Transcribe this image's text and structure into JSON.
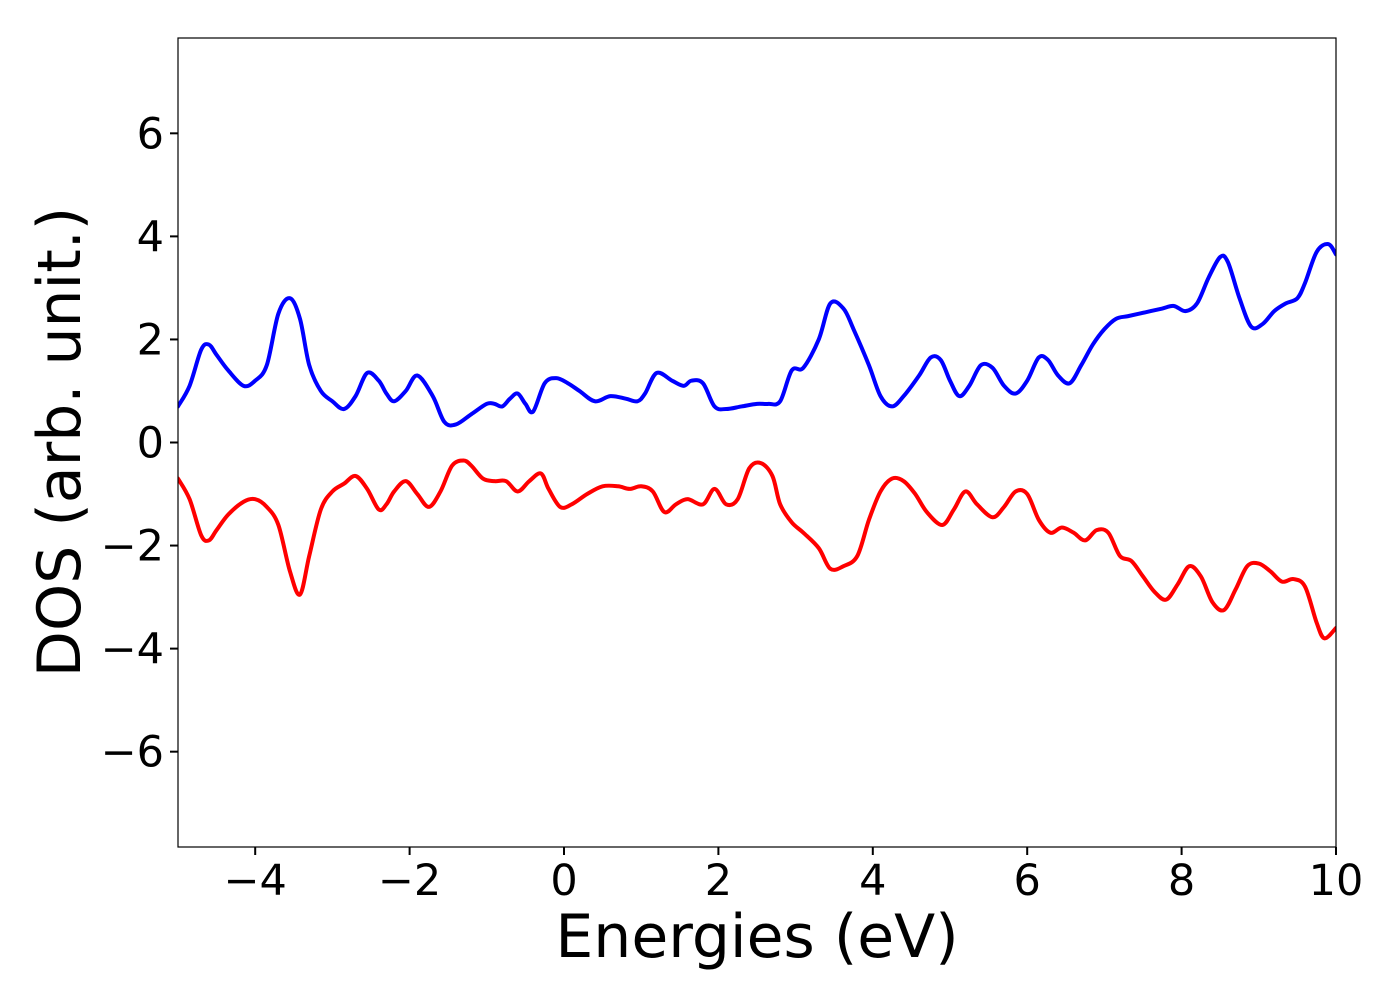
{
  "chart_data": {
    "type": "line",
    "title": "",
    "xlabel": "Energies (eV)",
    "ylabel": "DOS (arb. unit.)",
    "xlim": [
      -5,
      10
    ],
    "ylim": [
      -7.85,
      7.85
    ],
    "xticks": [
      -4,
      -2,
      0,
      2,
      4,
      6,
      8,
      10
    ],
    "yticks": [
      -6,
      -4,
      -2,
      0,
      2,
      4,
      6
    ],
    "xtick_labels": [
      "−4",
      "−2",
      "0",
      "2",
      "4",
      "6",
      "8",
      "10"
    ],
    "ytick_labels": [
      "−6",
      "−4",
      "−2",
      "0",
      "2",
      "4",
      "6"
    ],
    "grid": false,
    "legend": false,
    "series": [
      {
        "color": "#0000ff",
        "x": [
          -5.0,
          -4.85,
          -4.7,
          -4.6,
          -4.5,
          -4.35,
          -4.15,
          -4.0,
          -3.85,
          -3.7,
          -3.55,
          -3.42,
          -3.3,
          -3.15,
          -3.0,
          -2.85,
          -2.7,
          -2.55,
          -2.4,
          -2.3,
          -2.2,
          -2.05,
          -1.9,
          -1.7,
          -1.55,
          -1.4,
          -1.2,
          -1.0,
          -0.9,
          -0.8,
          -0.7,
          -0.6,
          -0.5,
          -0.4,
          -0.25,
          -0.1,
          0.05,
          0.2,
          0.4,
          0.6,
          0.8,
          0.95,
          1.05,
          1.2,
          1.4,
          1.55,
          1.65,
          1.8,
          1.95,
          2.1,
          2.3,
          2.5,
          2.65,
          2.8,
          2.95,
          3.1,
          3.3,
          3.45,
          3.62,
          3.75,
          3.95,
          4.1,
          4.25,
          4.4,
          4.6,
          4.75,
          4.88,
          5.0,
          5.12,
          5.25,
          5.4,
          5.55,
          5.7,
          5.85,
          6.0,
          6.15,
          6.27,
          6.4,
          6.55,
          6.7,
          6.85,
          7.0,
          7.15,
          7.3,
          7.45,
          7.6,
          7.75,
          7.9,
          8.05,
          8.2,
          8.35,
          8.5,
          8.6,
          8.75,
          8.9,
          9.05,
          9.2,
          9.35,
          9.5,
          9.6,
          9.75,
          9.9,
          10.0
        ],
        "y": [
          0.7,
          1.1,
          1.8,
          1.9,
          1.7,
          1.4,
          1.1,
          1.2,
          1.5,
          2.5,
          2.8,
          2.4,
          1.5,
          1.0,
          0.8,
          0.65,
          0.9,
          1.35,
          1.2,
          0.95,
          0.8,
          1.0,
          1.3,
          0.9,
          0.4,
          0.35,
          0.55,
          0.75,
          0.75,
          0.7,
          0.85,
          0.95,
          0.75,
          0.6,
          1.15,
          1.25,
          1.15,
          1.0,
          0.8,
          0.9,
          0.85,
          0.8,
          0.95,
          1.35,
          1.2,
          1.1,
          1.2,
          1.15,
          0.7,
          0.65,
          0.7,
          0.75,
          0.75,
          0.8,
          1.4,
          1.45,
          2.0,
          2.7,
          2.6,
          2.2,
          1.5,
          0.9,
          0.7,
          0.9,
          1.3,
          1.65,
          1.6,
          1.2,
          0.9,
          1.1,
          1.5,
          1.45,
          1.1,
          0.95,
          1.2,
          1.65,
          1.6,
          1.3,
          1.15,
          1.5,
          1.9,
          2.2,
          2.4,
          2.45,
          2.5,
          2.55,
          2.6,
          2.65,
          2.55,
          2.7,
          3.2,
          3.6,
          3.5,
          2.8,
          2.25,
          2.3,
          2.55,
          2.7,
          2.8,
          3.1,
          3.7,
          3.85,
          3.65
        ]
      },
      {
        "color": "#ff0000",
        "x": [
          -5.0,
          -4.85,
          -4.7,
          -4.6,
          -4.5,
          -4.35,
          -4.15,
          -4.0,
          -3.85,
          -3.7,
          -3.55,
          -3.42,
          -3.3,
          -3.15,
          -3.0,
          -2.85,
          -2.7,
          -2.55,
          -2.4,
          -2.3,
          -2.2,
          -2.05,
          -1.9,
          -1.75,
          -1.6,
          -1.45,
          -1.3,
          -1.2,
          -1.05,
          -0.9,
          -0.75,
          -0.6,
          -0.45,
          -0.3,
          -0.2,
          -0.05,
          0.1,
          0.3,
          0.5,
          0.7,
          0.85,
          1.0,
          1.15,
          1.3,
          1.45,
          1.6,
          1.8,
          1.95,
          2.1,
          2.25,
          2.4,
          2.55,
          2.7,
          2.8,
          2.95,
          3.1,
          3.3,
          3.45,
          3.62,
          3.8,
          3.95,
          4.1,
          4.25,
          4.4,
          4.55,
          4.7,
          4.9,
          5.05,
          5.2,
          5.35,
          5.55,
          5.7,
          5.85,
          6.0,
          6.15,
          6.3,
          6.45,
          6.6,
          6.75,
          6.9,
          7.05,
          7.2,
          7.35,
          7.5,
          7.65,
          7.8,
          7.95,
          8.1,
          8.25,
          8.4,
          8.55,
          8.7,
          8.85,
          9.0,
          9.15,
          9.3,
          9.45,
          9.6,
          9.75,
          9.85,
          10.0
        ],
        "y": [
          -0.7,
          -1.1,
          -1.8,
          -1.9,
          -1.7,
          -1.4,
          -1.15,
          -1.1,
          -1.25,
          -1.6,
          -2.5,
          -2.95,
          -2.2,
          -1.3,
          -0.95,
          -0.8,
          -0.65,
          -0.9,
          -1.3,
          -1.2,
          -0.95,
          -0.75,
          -1.0,
          -1.25,
          -0.95,
          -0.45,
          -0.35,
          -0.45,
          -0.7,
          -0.75,
          -0.75,
          -0.95,
          -0.75,
          -0.6,
          -0.9,
          -1.25,
          -1.2,
          -1.0,
          -0.85,
          -0.85,
          -0.9,
          -0.85,
          -0.95,
          -1.35,
          -1.2,
          -1.1,
          -1.2,
          -0.9,
          -1.2,
          -1.1,
          -0.5,
          -0.4,
          -0.65,
          -1.2,
          -1.55,
          -1.75,
          -2.05,
          -2.45,
          -2.4,
          -2.2,
          -1.5,
          -0.95,
          -0.7,
          -0.75,
          -1.0,
          -1.35,
          -1.6,
          -1.3,
          -0.95,
          -1.2,
          -1.45,
          -1.25,
          -0.95,
          -1.0,
          -1.5,
          -1.75,
          -1.65,
          -1.75,
          -1.9,
          -1.7,
          -1.75,
          -2.2,
          -2.3,
          -2.6,
          -2.9,
          -3.05,
          -2.75,
          -2.4,
          -2.6,
          -3.1,
          -3.25,
          -2.85,
          -2.4,
          -2.35,
          -2.5,
          -2.7,
          -2.65,
          -2.8,
          -3.5,
          -3.8,
          -3.6
        ]
      }
    ]
  }
}
